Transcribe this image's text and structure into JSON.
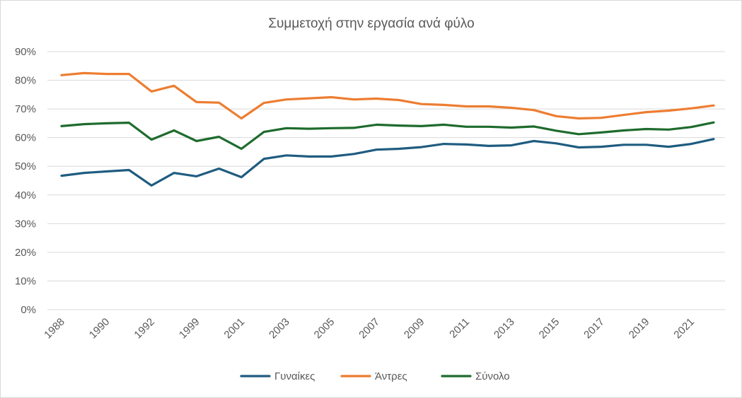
{
  "chart_data": {
    "type": "line",
    "title": "Συμμετοχή στην εργασία ανά φύλο",
    "xlabel": "",
    "ylabel": "",
    "ylim": [
      0,
      0.9
    ],
    "y_ticks": [
      0,
      0.1,
      0.2,
      0.3,
      0.4,
      0.5,
      0.6,
      0.7,
      0.8,
      0.9
    ],
    "y_tick_labels": [
      "0%",
      "10%",
      "20%",
      "30%",
      "40%",
      "50%",
      "60%",
      "70%",
      "80%",
      "90%"
    ],
    "categories": [
      "1988",
      "1989",
      "1990",
      "1991",
      "1992",
      "1993",
      "1999",
      "2000",
      "2001",
      "2002",
      "2003",
      "2004",
      "2005",
      "2006",
      "2007",
      "2008",
      "2009",
      "2010",
      "2011",
      "2012",
      "2013",
      "2014",
      "2015",
      "2016",
      "2017",
      "2018",
      "2019",
      "2020",
      "2021",
      "2022"
    ],
    "x_tick_labels": [
      "1988",
      "1990",
      "1992",
      "1999",
      "2001",
      "2003",
      "2005",
      "2007",
      "2009",
      "2011",
      "2013",
      "2015",
      "2017",
      "2019",
      "2021"
    ],
    "grid": true,
    "legend_position": "bottom",
    "series": [
      {
        "name": "Γυναίκες",
        "color": "#1f5c80",
        "values": [
          0.467,
          0.477,
          0.482,
          0.487,
          0.433,
          0.477,
          0.465,
          0.492,
          0.462,
          0.526,
          0.538,
          0.534,
          0.534,
          0.543,
          0.558,
          0.561,
          0.567,
          0.578,
          0.576,
          0.571,
          0.573,
          0.588,
          0.58,
          0.566,
          0.568,
          0.575,
          0.575,
          0.568,
          0.578,
          0.595
        ]
      },
      {
        "name": "Άντρες",
        "color": "#ed7d31",
        "values": [
          0.818,
          0.825,
          0.822,
          0.822,
          0.761,
          0.781,
          0.724,
          0.722,
          0.667,
          0.721,
          0.733,
          0.737,
          0.741,
          0.733,
          0.736,
          0.731,
          0.717,
          0.714,
          0.709,
          0.709,
          0.704,
          0.696,
          0.675,
          0.667,
          0.669,
          0.679,
          0.689,
          0.694,
          0.702,
          0.712
        ]
      },
      {
        "name": "Σύνολο",
        "color": "#1e6b2d",
        "values": [
          0.64,
          0.647,
          0.65,
          0.652,
          0.593,
          0.625,
          0.588,
          0.603,
          0.561,
          0.62,
          0.633,
          0.631,
          0.633,
          0.634,
          0.645,
          0.642,
          0.64,
          0.645,
          0.638,
          0.638,
          0.635,
          0.639,
          0.624,
          0.612,
          0.618,
          0.625,
          0.63,
          0.628,
          0.637,
          0.653
        ]
      }
    ]
  }
}
